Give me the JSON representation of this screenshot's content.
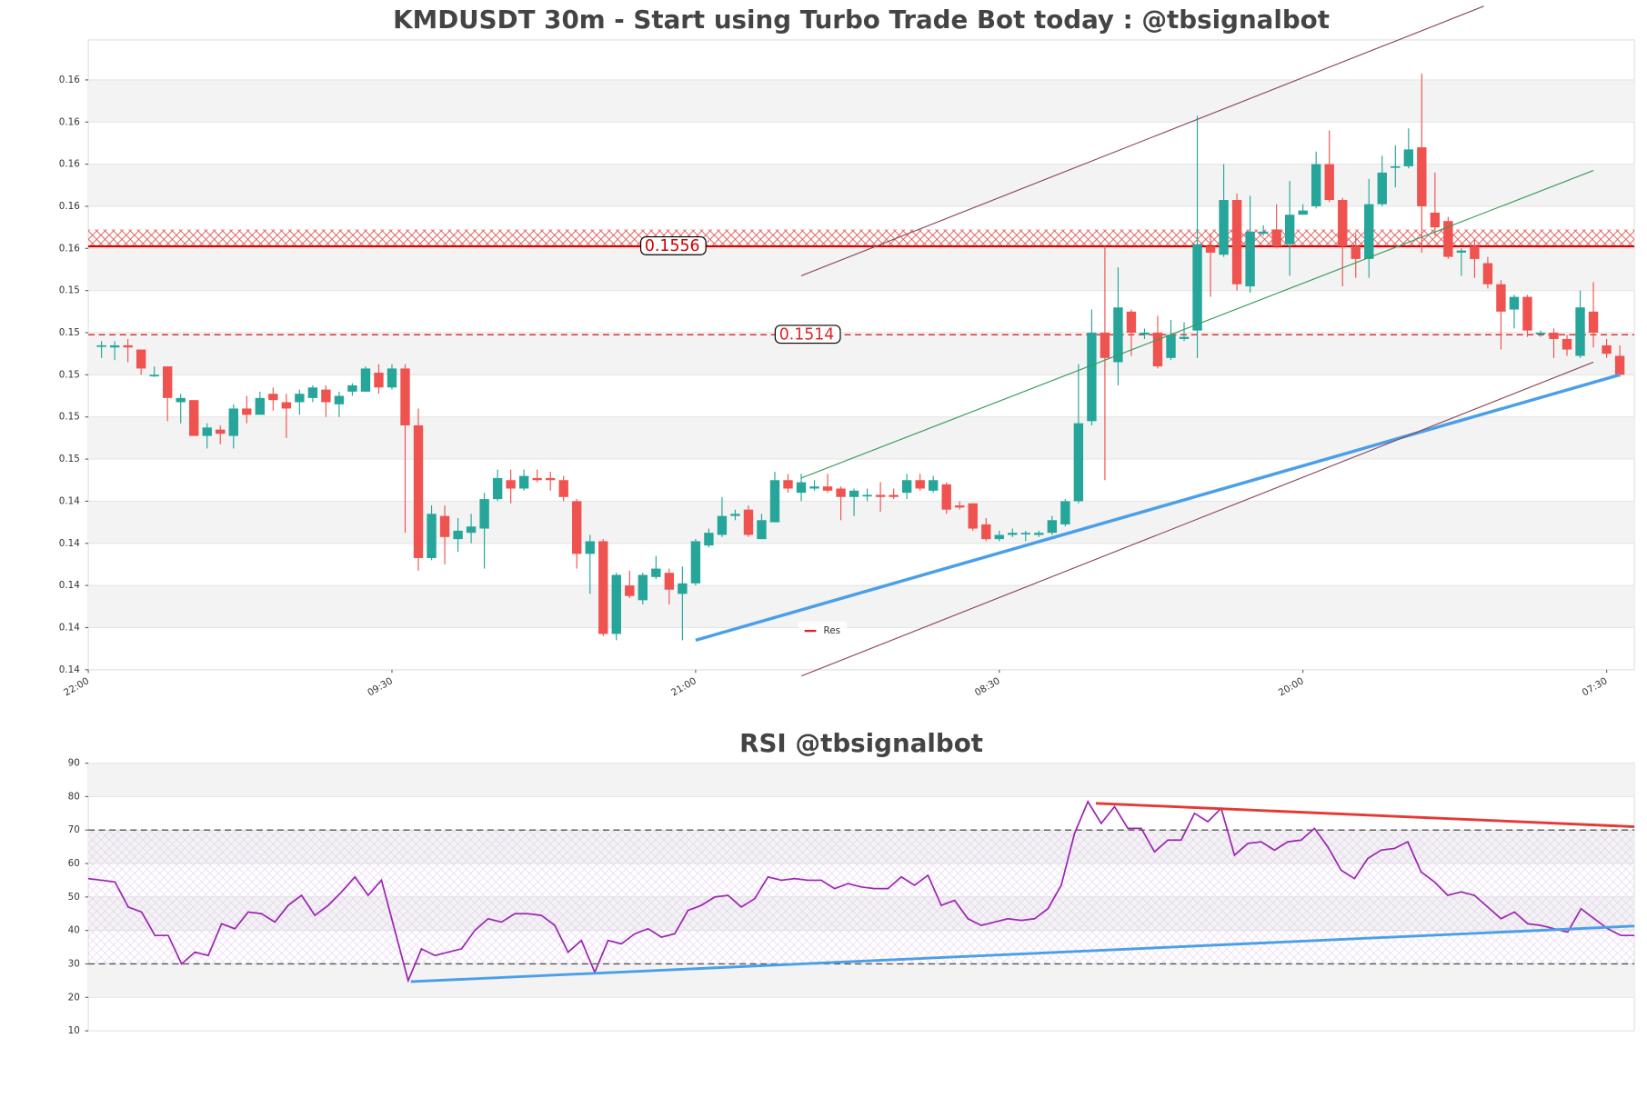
{
  "chart_data": [
    {
      "type": "candlestick",
      "title": "KMDUSDT 30m - Start using Turbo Trade Bot today : @tbsignalbot",
      "open": [
        0.1509,
        0.1508,
        0.1509,
        0.1507,
        0.1495,
        0.1499,
        0.1482,
        0.1483,
        0.1466,
        0.1469,
        0.1466,
        0.1479,
        0.1476,
        0.1486,
        0.1482,
        0.1482,
        0.1484,
        0.1488,
        0.1481,
        0.1487,
        0.1487,
        0.1496,
        0.1489,
        0.1498,
        0.1471,
        0.1408,
        0.1428,
        0.1417,
        0.142,
        0.1422,
        0.1436,
        0.1445,
        0.1441,
        0.1446,
        0.1446,
        0.1445,
        0.1435,
        0.141,
        0.1416,
        0.1372,
        0.1395,
        0.1388,
        0.1399,
        0.1401,
        0.1391,
        0.1396,
        0.1414,
        0.1419,
        0.1428,
        0.1431,
        0.1417,
        0.1425,
        0.1445,
        0.1439,
        0.1441,
        0.1442,
        0.1441,
        0.1437,
        0.1438,
        0.1438,
        0.1438,
        0.1439,
        0.1445,
        0.144,
        0.1443,
        0.1433,
        0.1434,
        0.1424,
        0.1417,
        0.1419,
        0.142,
        0.1419,
        0.142,
        0.1424,
        0.1435,
        0.1473,
        0.1515,
        0.1501,
        0.1525,
        0.1514,
        0.1515,
        0.1503,
        0.1512,
        0.1516,
        0.1556,
        0.1552,
        0.1578,
        0.1537,
        0.1562,
        0.1564,
        0.1557,
        0.1571,
        0.1575,
        0.1595,
        0.1578,
        0.1556,
        0.155,
        0.1576,
        0.1594,
        0.1594,
        0.1603,
        0.1572,
        0.1568,
        0.1553,
        0.1556,
        0.1548,
        0.1538,
        0.1526,
        0.1532,
        0.1515,
        0.1515,
        0.1512,
        0.1504,
        0.1525,
        0.1509,
        0.1504
      ],
      "high": [
        0.1511,
        0.1511,
        0.1512,
        0.1507,
        0.1499,
        0.1499,
        0.1486,
        0.1483,
        0.1472,
        0.1471,
        0.1481,
        0.1485,
        0.1487,
        0.1489,
        0.1486,
        0.1488,
        0.149,
        0.149,
        0.1487,
        0.1491,
        0.1499,
        0.15,
        0.15,
        0.15,
        0.1479,
        0.1433,
        0.1433,
        0.1427,
        0.1429,
        0.1439,
        0.145,
        0.145,
        0.145,
        0.145,
        0.1449,
        0.1447,
        0.1436,
        0.1419,
        0.1417,
        0.1401,
        0.1402,
        0.1401,
        0.1409,
        0.1403,
        0.1404,
        0.1417,
        0.1422,
        0.1437,
        0.1431,
        0.1433,
        0.1429,
        0.1449,
        0.1448,
        0.1448,
        0.1445,
        0.1448,
        0.1442,
        0.1441,
        0.1441,
        0.1444,
        0.1441,
        0.1448,
        0.1448,
        0.1447,
        0.1444,
        0.1435,
        0.1434,
        0.1427,
        0.1421,
        0.1422,
        0.1421,
        0.1421,
        0.1428,
        0.1436,
        0.15,
        0.1526,
        0.1556,
        0.1546,
        0.1526,
        0.1517,
        0.1523,
        0.1521,
        0.152,
        0.1618,
        0.1562,
        0.1595,
        0.1581,
        0.158,
        0.1566,
        0.1576,
        0.1587,
        0.1576,
        0.1601,
        0.1611,
        0.1579,
        0.1562,
        0.1588,
        0.1599,
        0.1604,
        0.1612,
        0.1638,
        0.1591,
        0.157,
        0.1555,
        0.1559,
        0.1551,
        0.154,
        0.1533,
        0.1533,
        0.1516,
        0.1517,
        0.1514,
        0.1535,
        0.1539,
        0.1512,
        0.1509
      ],
      "low": [
        0.1503,
        0.1502,
        0.1501,
        0.1495,
        0.1494,
        0.1473,
        0.1472,
        0.1466,
        0.146,
        0.1462,
        0.146,
        0.1472,
        0.1476,
        0.1478,
        0.1465,
        0.1476,
        0.1482,
        0.1475,
        0.1475,
        0.1485,
        0.1487,
        0.1486,
        0.1488,
        0.142,
        0.1402,
        0.1407,
        0.1405,
        0.1411,
        0.1415,
        0.1403,
        0.1435,
        0.1434,
        0.144,
        0.1444,
        0.144,
        0.1435,
        0.1403,
        0.1391,
        0.1371,
        0.1369,
        0.1389,
        0.1386,
        0.1398,
        0.1386,
        0.1369,
        0.1395,
        0.1413,
        0.1418,
        0.1426,
        0.1418,
        0.1417,
        0.1425,
        0.1439,
        0.1435,
        0.144,
        0.1439,
        0.1426,
        0.1428,
        0.1435,
        0.143,
        0.1436,
        0.1436,
        0.144,
        0.1439,
        0.1429,
        0.1431,
        0.1421,
        0.1416,
        0.1416,
        0.1418,
        0.1416,
        0.1418,
        0.1419,
        0.1423,
        0.1434,
        0.1471,
        0.1445,
        0.149,
        0.1504,
        0.1512,
        0.1498,
        0.1502,
        0.1511,
        0.1503,
        0.1532,
        0.1551,
        0.1535,
        0.1534,
        0.1561,
        0.1555,
        0.1542,
        0.1571,
        0.1574,
        0.1577,
        0.1537,
        0.1541,
        0.1541,
        0.1575,
        0.1584,
        0.1593,
        0.1553,
        0.1561,
        0.155,
        0.1542,
        0.1541,
        0.1536,
        0.1507,
        0.1517,
        0.1513,
        0.1513,
        0.1503,
        0.1504,
        0.1503,
        0.1508,
        0.1503,
        0.1494
      ],
      "close": [
        0.1509,
        0.1509,
        0.1508,
        0.1498,
        0.1495,
        0.1484,
        0.1484,
        0.1466,
        0.147,
        0.1467,
        0.1479,
        0.1476,
        0.1484,
        0.1483,
        0.1479,
        0.1486,
        0.1489,
        0.1482,
        0.1485,
        0.149,
        0.1498,
        0.1489,
        0.1498,
        0.1471,
        0.1408,
        0.1429,
        0.1418,
        0.1421,
        0.1423,
        0.1436,
        0.1446,
        0.1441,
        0.1447,
        0.1445,
        0.1445,
        0.1437,
        0.141,
        0.1416,
        0.1372,
        0.14,
        0.139,
        0.14,
        0.1403,
        0.1393,
        0.1396,
        0.1416,
        0.142,
        0.1428,
        0.1429,
        0.1419,
        0.1426,
        0.1445,
        0.1441,
        0.1444,
        0.1442,
        0.144,
        0.1437,
        0.144,
        0.1438,
        0.1437,
        0.1437,
        0.1445,
        0.1441,
        0.1445,
        0.1431,
        0.1432,
        0.1422,
        0.1417,
        0.1419,
        0.142,
        0.142,
        0.142,
        0.1426,
        0.1435,
        0.1472,
        0.1515,
        0.1503,
        0.1527,
        0.1515,
        0.1515,
        0.1499,
        0.1514,
        0.1513,
        0.1557,
        0.1553,
        0.1578,
        0.1538,
        0.1563,
        0.1563,
        0.1556,
        0.1571,
        0.1573,
        0.1595,
        0.1578,
        0.1556,
        0.155,
        0.1576,
        0.1591,
        0.1594,
        0.1602,
        0.1575,
        0.1565,
        0.1551,
        0.1554,
        0.155,
        0.1538,
        0.1525,
        0.1532,
        0.1516,
        0.1515,
        0.1512,
        0.1507,
        0.1527,
        0.1515,
        0.1505,
        0.1495
      ],
      "up_color": "#26a69a",
      "down_color": "#ef5350",
      "xlim": [
        -1,
        116.1
      ],
      "ylim": [
        0.1355,
        0.1654
      ],
      "xticks": [
        {
          "value": -1,
          "label": "22:00"
        },
        {
          "value": 22,
          "label": "09:30"
        },
        {
          "value": 45,
          "label": "21:00"
        },
        {
          "value": 68,
          "label": "08:30"
        },
        {
          "value": 91,
          "label": "20:00"
        },
        {
          "value": 114,
          "label": "07:30"
        }
      ],
      "yticks": [
        {
          "value": 0.1355,
          "label": "0.14"
        },
        {
          "value": 0.1375,
          "label": "0.14"
        },
        {
          "value": 0.1395,
          "label": "0.14"
        },
        {
          "value": 0.1415,
          "label": "0.14"
        },
        {
          "value": 0.1435,
          "label": "0.14"
        },
        {
          "value": 0.1455,
          "label": "0.15"
        },
        {
          "value": 0.1475,
          "label": "0.15"
        },
        {
          "value": 0.1495,
          "label": "0.15"
        },
        {
          "value": 0.1515,
          "label": "0.15"
        },
        {
          "value": 0.1535,
          "label": "0.15"
        },
        {
          "value": 0.1555,
          "label": "0.16"
        },
        {
          "value": 0.1575,
          "label": "0.16"
        },
        {
          "value": 0.1595,
          "label": "0.16"
        },
        {
          "value": 0.1615,
          "label": "0.16"
        },
        {
          "value": 0.1635,
          "label": "0.16"
        }
      ],
      "bands": true,
      "grid": true,
      "zone": [
        0.1556,
        0.1564
      ],
      "zone_color": "#d62728",
      "levels": [
        {
          "value": 0.1556,
          "color": "#d00000",
          "style": "solid",
          "labeled": true
        },
        {
          "value": 0.1514,
          "color": "#d62728",
          "style": "dashed",
          "labeled": true
        }
      ],
      "legend": {
        "name": "Res",
        "color": "#d62728"
      },
      "trendlines": [
        {
          "color": "#4a9fe8",
          "width": 3,
          "points": [
            [
              45,
              0.1369
            ],
            [
              115,
              0.1495
            ]
          ]
        },
        {
          "color": "#3a9a5b",
          "width": 1,
          "points": [
            [
              53,
              0.1446
            ],
            [
              113,
              0.1592
            ]
          ]
        },
        {
          "color": "#8b4a5e",
          "width": 1,
          "points": [
            [
              53,
              0.1542
            ],
            [
              104.7,
              0.167
            ]
          ]
        },
        {
          "color": "#8b4a5e",
          "width": 1,
          "points": [
            [
              53,
              0.1352
            ],
            [
              113,
              0.1501
            ]
          ]
        }
      ]
    },
    {
      "type": "line",
      "title": "RSI @tbsignalbot",
      "values": [
        55.5,
        55,
        54.5,
        47,
        45.5,
        38.5,
        38.5,
        30,
        33.5,
        32.5,
        42,
        40.5,
        45.5,
        45,
        42.5,
        47.5,
        50.5,
        44.5,
        47.5,
        51.5,
        56,
        50.5,
        55,
        40,
        25,
        34.5,
        32.5,
        33.5,
        34.5,
        40,
        43.5,
        42.5,
        45,
        45,
        44.5,
        41.5,
        33.5,
        37,
        27.5,
        37,
        36,
        39,
        40.5,
        38,
        39,
        46,
        47.5,
        50,
        50.5,
        47,
        49.5,
        56,
        55,
        55.5,
        55,
        55,
        52.5,
        54,
        53,
        52.5,
        52.5,
        56,
        53.5,
        56.5,
        47.5,
        49,
        43.5,
        41.5,
        42.5,
        43.5,
        43,
        43.5,
        46.5,
        53.5,
        69,
        78.5,
        72,
        77,
        70.5,
        70.5,
        63.5,
        67,
        67,
        75,
        72.5,
        76.5,
        62.5,
        66,
        66.5,
        64,
        66.5,
        67,
        70.5,
        65,
        58,
        55.5,
        61.5,
        64,
        64.5,
        66.5,
        57.5,
        54.5,
        50.5,
        51.5,
        50.5,
        47,
        43.5,
        45.5,
        42,
        41.5,
        40.5,
        39.5,
        46.5,
        43.5,
        40.5,
        38.5,
        38.5
      ],
      "color": "#9c27b0",
      "xlim": [
        0,
        116
      ],
      "ylim": [
        10,
        90
      ],
      "yticks": [
        10,
        20,
        30,
        40,
        50,
        60,
        70,
        80,
        90
      ],
      "bands": true,
      "grid": true,
      "zone": [
        30,
        70
      ],
      "zone_color": "#d9b8ee",
      "levels": [
        {
          "value": 70,
          "color": "#555555",
          "style": "dashed",
          "labeled": false
        },
        {
          "value": 30,
          "color": "#555555",
          "style": "dashed",
          "labeled": false
        }
      ],
      "trendlines": [
        {
          "color": "#e53935",
          "width": 2.5,
          "points": [
            [
              75.6,
              78
            ],
            [
              116,
              71
            ]
          ]
        },
        {
          "color": "#4a9fe8",
          "width": 2.5,
          "points": [
            [
              24.2,
              24.7
            ],
            [
              116,
              41.3
            ]
          ]
        }
      ]
    }
  ]
}
